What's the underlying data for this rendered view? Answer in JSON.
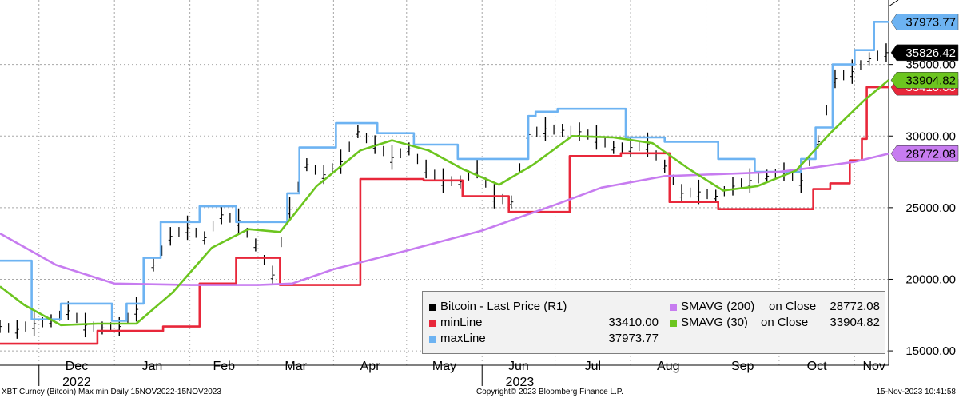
{
  "chart_data": {
    "type": "line",
    "title": "",
    "xlabel": "",
    "ylabel": "",
    "x_range": [
      "2022-11-15",
      "2023-11-15"
    ],
    "ylim": [
      14000,
      39500
    ],
    "y_ticks": [
      "15000.00",
      "20000.00",
      "25000.00",
      "30000.00",
      "35000.00"
    ],
    "x_ticks": [
      "Dec",
      "Jan",
      "Feb",
      "Mar",
      "Apr",
      "May",
      "Jun",
      "Jul",
      "Aug",
      "Sep",
      "Oct",
      "Nov"
    ],
    "x_tick_dates": [
      "2022-12-01",
      "2023-01-01",
      "2023-02-01",
      "2023-03-01",
      "2023-04-01",
      "2023-05-01",
      "2023-06-01",
      "2023-07-01",
      "2023-08-01",
      "2023-09-01",
      "2023-10-01",
      "2023-11-01"
    ],
    "year_labels": [
      {
        "label": "2022",
        "date": "2022-12-01"
      },
      {
        "label": "2023",
        "date": "2023-06-01"
      }
    ],
    "grid": true,
    "legend_position": "bottom-right",
    "series": [
      {
        "name": "Bitcoin - Last Price (R1)",
        "render": "bars",
        "color": "#000000",
        "x": [
          "2022-11-15",
          "2022-11-22",
          "2022-11-29",
          "2022-12-06",
          "2022-12-13",
          "2022-12-20",
          "2022-12-27",
          "2023-01-03",
          "2023-01-10",
          "2023-01-17",
          "2023-01-24",
          "2023-01-31",
          "2023-02-07",
          "2023-02-14",
          "2023-02-21",
          "2023-02-28",
          "2023-03-07",
          "2023-03-14",
          "2023-03-21",
          "2023-03-28",
          "2023-04-04",
          "2023-04-11",
          "2023-04-18",
          "2023-04-25",
          "2023-05-02",
          "2023-05-09",
          "2023-05-16",
          "2023-05-23",
          "2023-05-30",
          "2023-06-06",
          "2023-06-13",
          "2023-06-20",
          "2023-06-27",
          "2023-07-04",
          "2023-07-11",
          "2023-07-18",
          "2023-07-25",
          "2023-08-01",
          "2023-08-08",
          "2023-08-15",
          "2023-08-22",
          "2023-08-29",
          "2023-09-05",
          "2023-09-12",
          "2023-09-19",
          "2023-09-26",
          "2023-10-03",
          "2023-10-10",
          "2023-10-17",
          "2023-10-24",
          "2023-10-31",
          "2023-11-07",
          "2023-11-14"
        ],
        "values": [
          16700,
          16500,
          16900,
          17100,
          17800,
          16800,
          16600,
          16700,
          17900,
          21000,
          23000,
          23600,
          22900,
          24500,
          24100,
          22400,
          20300,
          24900,
          28000,
          27300,
          28200,
          30300,
          29400,
          28500,
          29100,
          27700,
          26900,
          26800,
          27700,
          25800,
          25400,
          30100,
          30500,
          30400,
          30300,
          29900,
          29200,
          29200,
          29400,
          27900,
          26000,
          26100,
          25800,
          26500,
          26900,
          27200,
          27500,
          26900,
          29600,
          34000,
          34500,
          35400,
          35826
        ]
      },
      {
        "name": "minLine",
        "color": "#e8273a",
        "value": "33410.00",
        "x": [
          "2022-11-15",
          "2022-11-25",
          "2022-11-25",
          "2022-12-25",
          "2022-12-25",
          "2023-01-13",
          "2023-01-13",
          "2023-01-21",
          "2023-01-21",
          "2023-02-05",
          "2023-02-05",
          "2023-02-20",
          "2023-02-20",
          "2023-03-10",
          "2023-03-10",
          "2023-03-31",
          "2023-03-31",
          "2023-04-12",
          "2023-04-12",
          "2023-05-08",
          "2023-05-08",
          "2023-05-24",
          "2023-05-24",
          "2023-06-12",
          "2023-06-12",
          "2023-07-07",
          "2023-07-07",
          "2023-07-28",
          "2023-07-28",
          "2023-08-17",
          "2023-08-17",
          "2023-09-06",
          "2023-09-06",
          "2023-09-28",
          "2023-09-28",
          "2023-10-15",
          "2023-10-15",
          "2023-10-22",
          "2023-10-22",
          "2023-10-30",
          "2023-10-30",
          "2023-11-04",
          "2023-11-04",
          "2023-11-06",
          "2023-11-06",
          "2023-11-15"
        ],
        "values": [
          15500,
          15500,
          15500,
          15500,
          16400,
          16400,
          16400,
          16400,
          16700,
          16700,
          19700,
          19700,
          21500,
          21500,
          19600,
          19600,
          19600,
          19600,
          27000,
          27000,
          26900,
          26900,
          25800,
          25800,
          24700,
          24700,
          28600,
          28600,
          28800,
          28800,
          25400,
          25400,
          24900,
          24900,
          24900,
          24900,
          26300,
          26300,
          26700,
          26700,
          28300,
          28300,
          29800,
          29800,
          33410,
          33410
        ]
      },
      {
        "name": "maxLine",
        "color": "#6db3f2",
        "value": "37973.77",
        "x": [
          "2022-11-15",
          "2022-11-28",
          "2022-11-28",
          "2022-12-10",
          "2022-12-10",
          "2022-12-31",
          "2022-12-31",
          "2023-01-06",
          "2023-01-06",
          "2023-01-13",
          "2023-01-13",
          "2023-01-20",
          "2023-01-20",
          "2023-02-05",
          "2023-02-05",
          "2023-02-20",
          "2023-02-20",
          "2023-03-13",
          "2023-03-13",
          "2023-03-18",
          "2023-03-18",
          "2023-04-02",
          "2023-04-02",
          "2023-04-19",
          "2023-04-19",
          "2023-05-04",
          "2023-05-04",
          "2023-05-22",
          "2023-05-22",
          "2023-06-01",
          "2023-06-01",
          "2023-06-20",
          "2023-06-20",
          "2023-06-23",
          "2023-06-23",
          "2023-07-02",
          "2023-07-02",
          "2023-07-30",
          "2023-07-30",
          "2023-08-15",
          "2023-08-15",
          "2023-09-06",
          "2023-09-06",
          "2023-09-21",
          "2023-09-21",
          "2023-10-10",
          "2023-10-10",
          "2023-10-16",
          "2023-10-16",
          "2023-10-23",
          "2023-10-23",
          "2023-11-01",
          "2023-11-01",
          "2023-11-09",
          "2023-11-09",
          "2023-11-15"
        ],
        "values": [
          21300,
          21300,
          17200,
          17200,
          18300,
          18300,
          17100,
          17100,
          18300,
          18300,
          21500,
          21500,
          24000,
          24000,
          25100,
          25100,
          24000,
          24000,
          26000,
          26000,
          29200,
          29200,
          30900,
          30900,
          30200,
          30200,
          29400,
          29400,
          28400,
          28400,
          28400,
          28400,
          31400,
          31400,
          31700,
          31700,
          31900,
          31900,
          29900,
          29900,
          29600,
          29600,
          28400,
          28400,
          27500,
          27500,
          28400,
          28400,
          30600,
          30600,
          35000,
          35000,
          36000,
          36000,
          37974,
          37974
        ]
      },
      {
        "name": "SMAVG (200)",
        "label": "on Close",
        "color": "#c77cf0",
        "value": "28772.08",
        "x": [
          "2022-11-15",
          "2022-12-08",
          "2023-01-01",
          "2023-02-01",
          "2023-03-01",
          "2023-03-15",
          "2023-04-01",
          "2023-05-01",
          "2023-06-01",
          "2023-07-01",
          "2023-07-20",
          "2023-08-15",
          "2023-09-15",
          "2023-10-01",
          "2023-10-15",
          "2023-11-01",
          "2023-11-15"
        ],
        "values": [
          23200,
          21000,
          19700,
          19600,
          19600,
          19700,
          20700,
          22000,
          23400,
          25200,
          26400,
          27200,
          27400,
          27500,
          27800,
          28200,
          28772
        ]
      },
      {
        "name": "SMAVG (30)",
        "label": "on Close",
        "color": "#6cc51f",
        "value": "33904.82",
        "x": [
          "2022-11-15",
          "2022-11-25",
          "2022-12-10",
          "2022-12-25",
          "2023-01-10",
          "2023-01-25",
          "2023-02-10",
          "2023-02-25",
          "2023-03-10",
          "2023-03-25",
          "2023-04-12",
          "2023-04-25",
          "2023-05-10",
          "2023-05-24",
          "2023-06-08",
          "2023-06-22",
          "2023-07-08",
          "2023-07-25",
          "2023-08-10",
          "2023-08-25",
          "2023-09-08",
          "2023-09-22",
          "2023-10-08",
          "2023-10-22",
          "2023-11-05",
          "2023-11-15"
        ],
        "values": [
          19500,
          18200,
          16800,
          16900,
          16900,
          19100,
          22200,
          23500,
          23300,
          26500,
          29000,
          29700,
          29000,
          27700,
          26600,
          28000,
          30000,
          29900,
          29500,
          27700,
          26200,
          26500,
          27600,
          30200,
          32500,
          33905
        ]
      }
    ],
    "last_price": "35826.42"
  },
  "legend": {
    "bitcoin": {
      "name": "Bitcoin - Last Price (R1)"
    },
    "minline": {
      "name": "minLine",
      "value": "33410.00"
    },
    "maxline": {
      "name": "maxLine",
      "value": "37973.77"
    },
    "sma200": {
      "name": "SMAVG (200)",
      "label": "on Close",
      "value": "28772.08"
    },
    "sma30": {
      "name": "SMAVG (30)",
      "label": "on Close",
      "value": "33904.82"
    }
  },
  "footer": {
    "left": "XBT Curncy (Bitcoin) Max min  Daily 15NOV2022-15NOV2023",
    "center": "Copyright© 2023 Bloomberg Finance L.P.",
    "right": "15-Nov-2023 10:41:58"
  }
}
